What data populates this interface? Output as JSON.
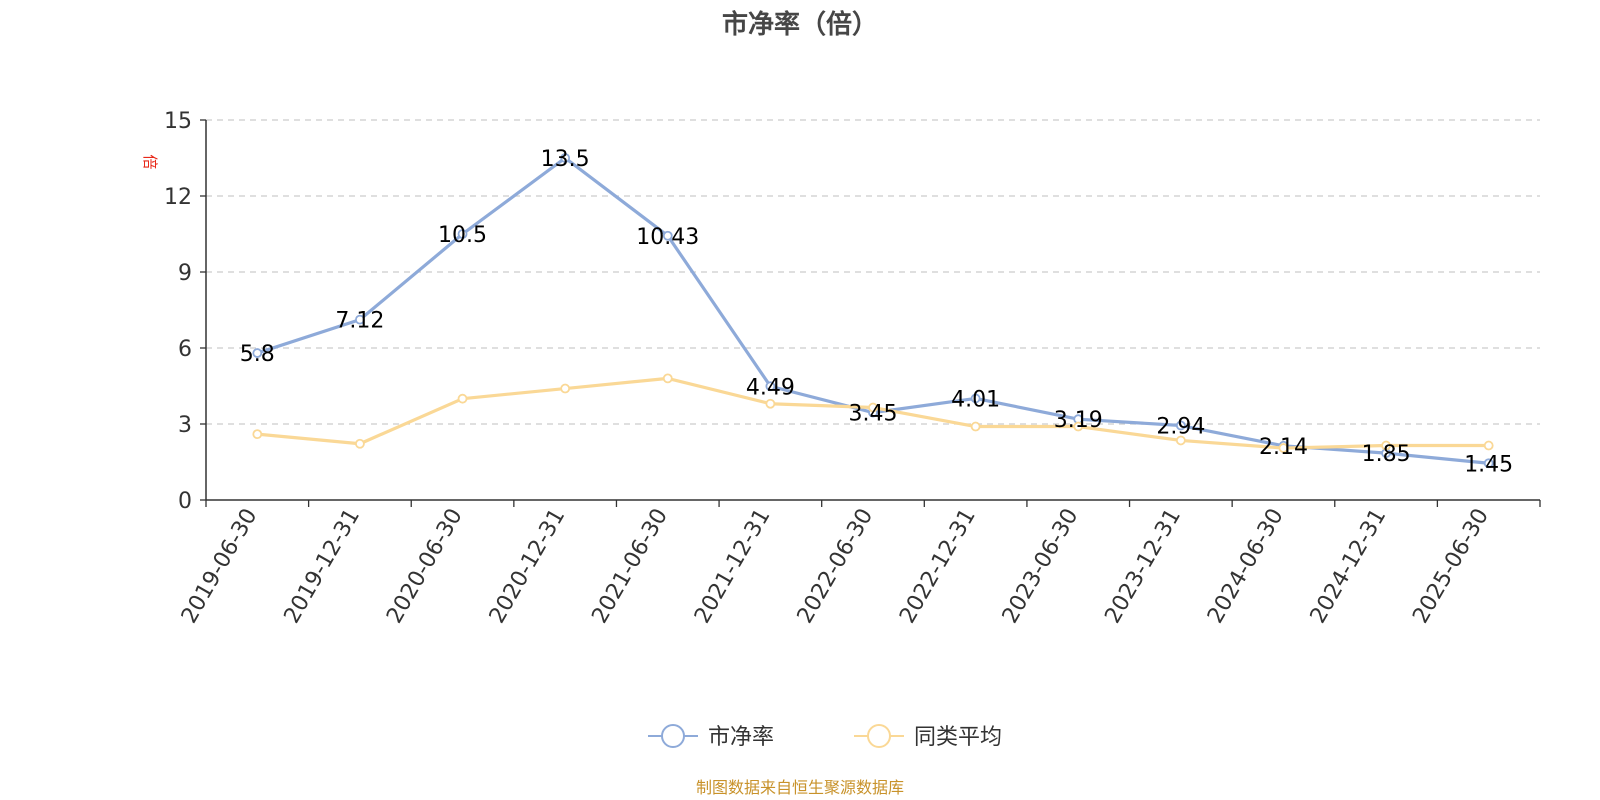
{
  "chart_data": {
    "type": "line",
    "title": "市净率（倍）",
    "ylabel": "倍",
    "xlabel": "",
    "x": [
      "2019-06-30",
      "2019-12-31",
      "2020-06-30",
      "2020-12-31",
      "2021-06-30",
      "2021-12-31",
      "2022-06-30",
      "2022-12-31",
      "2023-06-30",
      "2023-12-31",
      "2024-06-30",
      "2024-12-31",
      "2025-06-30"
    ],
    "ylim": [
      0,
      15
    ],
    "yticks": [
      0,
      3,
      6,
      9,
      12,
      15
    ],
    "grid": true,
    "legend_position": "bottom-center",
    "series": [
      {
        "name": "市净率",
        "color": "#8eaad9",
        "values": [
          5.8,
          7.12,
          10.5,
          13.5,
          10.43,
          4.49,
          3.45,
          4.01,
          3.19,
          2.94,
          2.14,
          1.85,
          1.45
        ],
        "labels": [
          "5.8",
          "7.12",
          "10.5",
          "13.5",
          "10.43",
          "4.49",
          "3.45",
          "4.01",
          "3.19",
          "2.94",
          "2.14",
          "1.85",
          "1.45"
        ]
      },
      {
        "name": "同类平均",
        "color": "#fad896",
        "values": [
          2.6,
          2.22,
          4.0,
          4.4,
          4.8,
          3.8,
          3.65,
          2.9,
          2.9,
          2.35,
          2.05,
          2.15,
          2.15
        ]
      }
    ]
  },
  "footer": {
    "source": "制图数据来自恒生聚源数据库",
    "source_color": "#c8922a"
  },
  "colors": {
    "axis": "#333333",
    "grid": "#cccccc",
    "title": "#464646",
    "ylabel": "#e8291a",
    "data_label": "#000000"
  }
}
